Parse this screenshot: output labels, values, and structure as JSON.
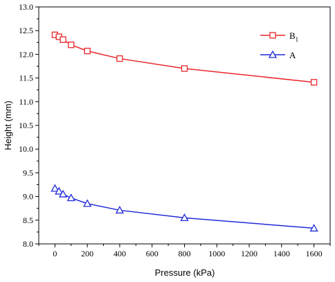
{
  "chart_data": {
    "type": "line",
    "xlabel": "Pressure (kPa)",
    "ylabel": "Height (mm)",
    "xlim": [
      -100,
      1700
    ],
    "ylim": [
      8.0,
      13.0
    ],
    "x_ticks": [
      "0",
      "200",
      "400",
      "600",
      "800",
      "1000",
      "1200",
      "1400",
      "1600"
    ],
    "y_ticks": [
      "8.0",
      "8.5",
      "9.0",
      "9.5",
      "10.0",
      "10.5",
      "11.0",
      "11.5",
      "12.0",
      "12.5",
      "13.0"
    ],
    "legend_position": "top-right",
    "series": [
      {
        "name": "B",
        "name_subscript": "1",
        "color": "#e8262a",
        "marker": "square",
        "x": [
          0,
          25,
          50,
          100,
          200,
          400,
          800,
          1600
        ],
        "y": [
          12.41,
          12.37,
          12.31,
          12.2,
          12.07,
          11.91,
          11.7,
          11.41
        ]
      },
      {
        "name": "A",
        "color": "#1f2ad8",
        "marker": "triangle",
        "x": [
          0,
          25,
          50,
          100,
          200,
          400,
          800,
          1600
        ],
        "y": [
          9.17,
          9.11,
          9.05,
          8.97,
          8.85,
          8.71,
          8.55,
          8.33
        ]
      }
    ]
  }
}
